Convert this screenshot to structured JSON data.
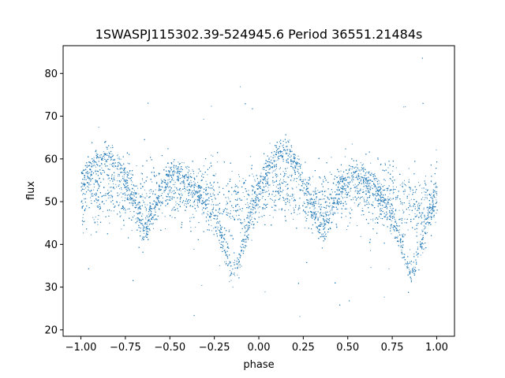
{
  "chart_data": {
    "type": "scatter",
    "title": "1SWASPJ115302.39-524945.6 Period 36551.21484s",
    "xlabel": "phase",
    "ylabel": "flux",
    "xlim": [
      -1.1,
      1.1
    ],
    "ylim": [
      18.5,
      86.5
    ],
    "xticks": [
      -1.0,
      -0.75,
      -0.5,
      -0.25,
      0.0,
      0.25,
      0.5,
      0.75,
      1.0
    ],
    "xtick_labels": [
      "−1.00",
      "−0.75",
      "−0.50",
      "−0.25",
      "0.00",
      "0.25",
      "0.50",
      "0.75",
      "1.00"
    ],
    "yticks": [
      20,
      30,
      40,
      50,
      60,
      70,
      80
    ],
    "ytick_labels": [
      "20",
      "30",
      "40",
      "50",
      "60",
      "70",
      "80"
    ],
    "grid": false,
    "point_color": "#1f77b4",
    "series": [
      {
        "values": [
          [
            -1.0,
            55
          ],
          [
            -0.95,
            58
          ],
          [
            -0.9,
            60
          ],
          [
            -0.85,
            61
          ],
          [
            -0.8,
            59
          ],
          [
            -0.75,
            55
          ],
          [
            -0.7,
            49
          ],
          [
            -0.65,
            43
          ],
          [
            -0.6,
            47
          ],
          [
            -0.55,
            53
          ],
          [
            -0.5,
            56
          ],
          [
            -0.45,
            57
          ],
          [
            -0.4,
            55
          ],
          [
            -0.35,
            53
          ],
          [
            -0.3,
            50
          ],
          [
            -0.25,
            46
          ],
          [
            -0.2,
            40
          ],
          [
            -0.15,
            33
          ],
          [
            -0.1,
            38
          ],
          [
            -0.05,
            46
          ],
          [
            0.0,
            53
          ],
          [
            0.05,
            58
          ],
          [
            0.1,
            61
          ],
          [
            0.15,
            62
          ],
          [
            0.2,
            59
          ],
          [
            0.25,
            55
          ],
          [
            0.3,
            49
          ],
          [
            0.35,
            43
          ],
          [
            0.4,
            47
          ],
          [
            0.45,
            53
          ],
          [
            0.5,
            56
          ],
          [
            0.55,
            57
          ],
          [
            0.6,
            55
          ],
          [
            0.65,
            53
          ],
          [
            0.7,
            50
          ],
          [
            0.75,
            46
          ],
          [
            0.8,
            40
          ],
          [
            0.85,
            33
          ],
          [
            0.9,
            38
          ],
          [
            0.95,
            46
          ],
          [
            1.0,
            53
          ]
        ]
      }
    ]
  }
}
